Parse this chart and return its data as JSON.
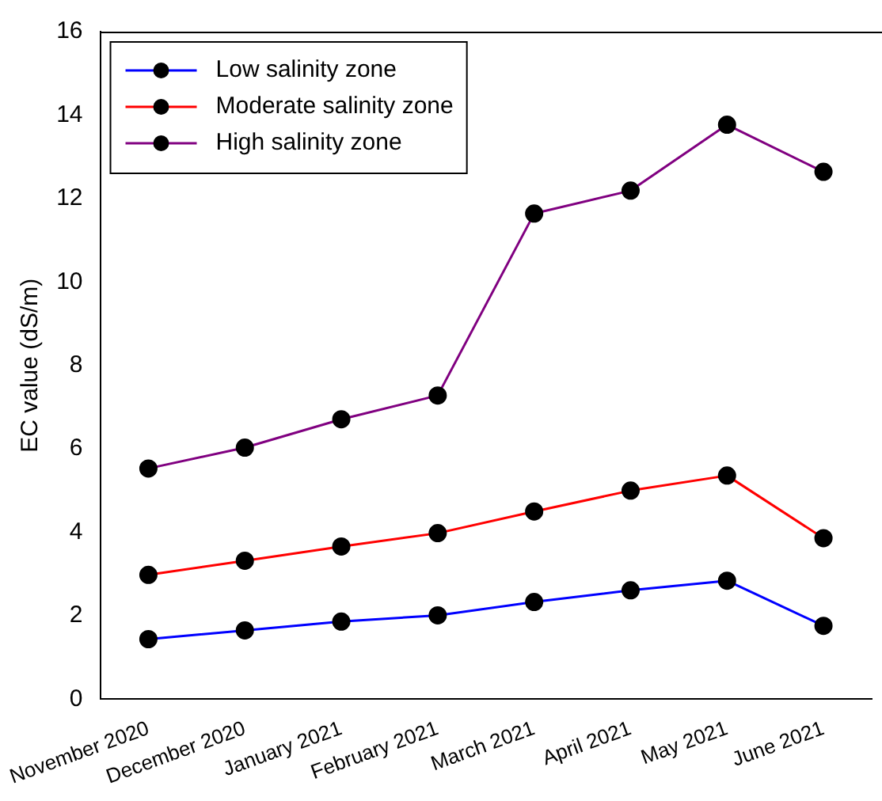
{
  "chart_data": {
    "type": "line",
    "ylabel": "EC value (dS/m)",
    "categories": [
      "November 2020",
      "December 2020",
      "January 2021",
      "February 2021",
      "March 2021",
      "April 2021",
      "May 2021",
      "June 2021"
    ],
    "series": [
      {
        "name": "Low salinity zone",
        "color": "#0000ff",
        "values": [
          1.44,
          1.65,
          1.86,
          2.01,
          2.33,
          2.61,
          2.84,
          1.76
        ]
      },
      {
        "name": "Moderate salinity zone",
        "color": "#ff0000",
        "values": [
          2.98,
          3.32,
          3.66,
          3.98,
          4.5,
          5.0,
          5.36,
          3.86
        ]
      },
      {
        "name": "High salinity zone",
        "color": "#800080",
        "values": [
          5.53,
          6.03,
          6.71,
          7.28,
          11.64,
          12.19,
          13.77,
          12.64
        ]
      }
    ],
    "ylim": [
      0,
      16
    ],
    "yticks": [
      0,
      2,
      4,
      6,
      8,
      10,
      12,
      14,
      16
    ],
    "grid": false,
    "legend": "top left",
    "marker": "circle",
    "line_style": "solid"
  }
}
